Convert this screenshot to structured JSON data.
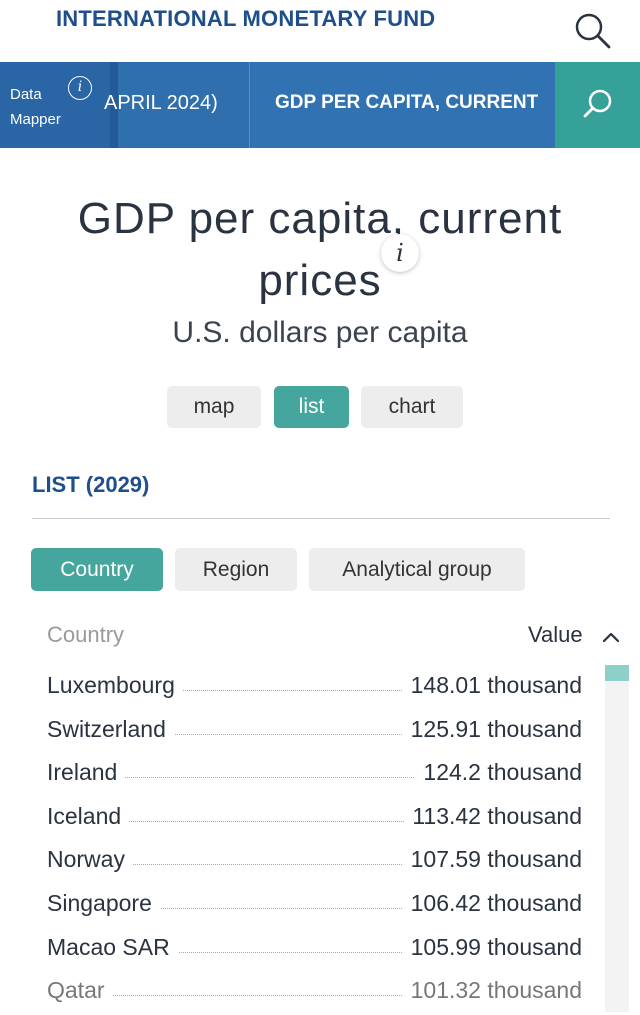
{
  "header": {
    "brand": "INTERNATIONAL MONETARY FUND"
  },
  "nav": {
    "data_mapper_line1": "Data",
    "data_mapper_line2": "Mapper",
    "info_glyph": "i",
    "segment1": "APRIL 2024)",
    "segment2": "GDP PER CAPITA, CURRENT"
  },
  "page": {
    "title_line1": "GDP per capita, current",
    "title_line2": "prices",
    "title_info_glyph": "i",
    "subtitle": "U.S. dollars per capita"
  },
  "views": {
    "map": "map",
    "list": "list",
    "chart": "chart",
    "active": "list"
  },
  "list": {
    "heading": "LIST (2029)",
    "filters": [
      "Country",
      "Region",
      "Analytical group"
    ],
    "active_filter": "Country",
    "columns": {
      "country": "Country",
      "value": "Value"
    },
    "rows": [
      {
        "country": "Luxembourg",
        "value": "148.01 thousand"
      },
      {
        "country": "Switzerland",
        "value": "125.91 thousand"
      },
      {
        "country": "Ireland",
        "value": "124.2 thousand"
      },
      {
        "country": "Iceland",
        "value": "113.42 thousand"
      },
      {
        "country": "Norway",
        "value": "107.59 thousand"
      },
      {
        "country": "Singapore",
        "value": "106.42 thousand"
      },
      {
        "country": "Macao SAR",
        "value": "105.99 thousand"
      },
      {
        "country": "Qatar",
        "value": "101.32 thousand"
      }
    ]
  },
  "icons": {
    "top_search": "search-icon",
    "nav_search": "search-icon",
    "sort": "chevron-up-icon"
  },
  "colors": {
    "brand_blue": "#1f4f8b",
    "nav_blue": "#2f6fae",
    "teal": "#45a69e"
  }
}
